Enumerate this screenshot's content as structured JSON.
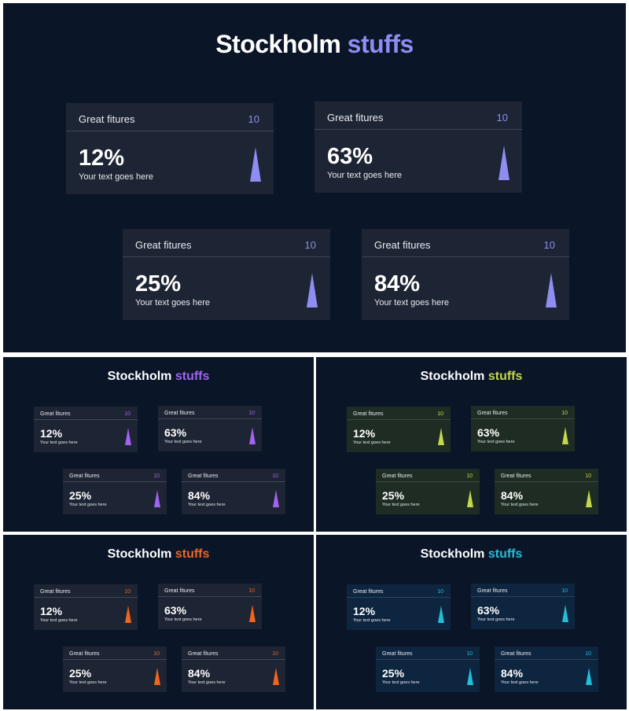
{
  "slides": [
    {
      "title_main": "Stockholm",
      "title_accent": "stuffs",
      "accent": "#8f8cf2",
      "card_bg": "#1d2433",
      "divider": "#3f4657",
      "cards": [
        {
          "label": "Great fitures",
          "num": "10",
          "pct": "12%",
          "sub": "Your text goes here"
        },
        {
          "label": "Great fitures",
          "num": "10",
          "pct": "63%",
          "sub": "Your text goes here"
        },
        {
          "label": "Great fitures",
          "num": "10",
          "pct": "25%",
          "sub": "Your text goes here"
        },
        {
          "label": "Great fitures",
          "num": "10",
          "pct": "84%",
          "sub": "Your text goes here"
        }
      ]
    },
    {
      "title_main": "Stockholm",
      "title_accent": "stuffs",
      "accent": "#a064ee",
      "card_bg": "#1d2433",
      "divider": "#3f4657",
      "cards": [
        {
          "label": "Great fitures",
          "num": "10",
          "pct": "12%",
          "sub": "Your text goes here"
        },
        {
          "label": "Great fitures",
          "num": "10",
          "pct": "63%",
          "sub": "Your text goes here"
        },
        {
          "label": "Great fitures",
          "num": "10",
          "pct": "25%",
          "sub": "Your text goes here"
        },
        {
          "label": "Great fitures",
          "num": "10",
          "pct": "84%",
          "sub": "Your text goes here"
        }
      ]
    },
    {
      "title_main": "Stockholm",
      "title_accent": "stuffs",
      "accent": "#c3d84a",
      "card_bg": "#1f2c23",
      "divider": "#3d4a3c",
      "cards": [
        {
          "label": "Great fitures",
          "num": "10",
          "pct": "12%",
          "sub": "Your text goes here"
        },
        {
          "label": "Great fitures",
          "num": "10",
          "pct": "63%",
          "sub": "Your text goes here"
        },
        {
          "label": "Great fitures",
          "num": "10",
          "pct": "25%",
          "sub": "Your text goes here"
        },
        {
          "label": "Great fitures",
          "num": "10",
          "pct": "84%",
          "sub": "Your text goes here"
        }
      ]
    },
    {
      "title_main": "Stockholm",
      "title_accent": "stuffs",
      "accent": "#f0661e",
      "card_bg": "#1d2433",
      "divider": "#3f4657",
      "cards": [
        {
          "label": "Great fitures",
          "num": "10",
          "pct": "12%",
          "sub": "Your text goes here"
        },
        {
          "label": "Great fitures",
          "num": "10",
          "pct": "63%",
          "sub": "Your text goes here"
        },
        {
          "label": "Great fitures",
          "num": "10",
          "pct": "25%",
          "sub": "Your text goes here"
        },
        {
          "label": "Great fitures",
          "num": "10",
          "pct": "84%",
          "sub": "Your text goes here"
        }
      ]
    },
    {
      "title_main": "Stockholm",
      "title_accent": "stuffs",
      "accent": "#22bfd8",
      "card_bg": "#0e2540",
      "divider": "#2c4361",
      "cards": [
        {
          "label": "Great fitures",
          "num": "10",
          "pct": "12%",
          "sub": "Your text goes here"
        },
        {
          "label": "Great fitures",
          "num": "10",
          "pct": "63%",
          "sub": "Your text goes here"
        },
        {
          "label": "Great fitures",
          "num": "10",
          "pct": "25%",
          "sub": "Your text goes here"
        },
        {
          "label": "Great fitures",
          "num": "10",
          "pct": "84%",
          "sub": "Your text goes here"
        }
      ]
    }
  ]
}
